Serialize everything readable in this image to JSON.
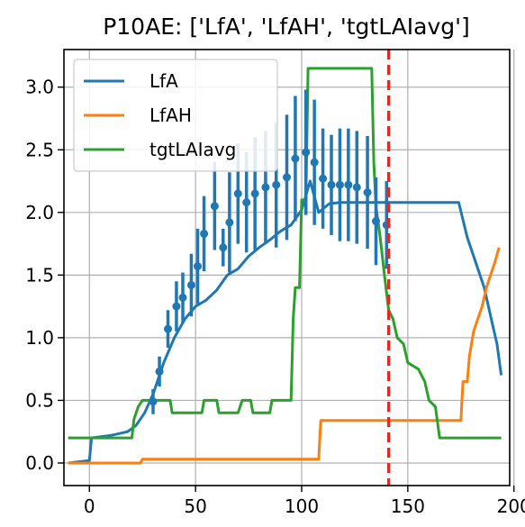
{
  "chart_data": {
    "type": "line",
    "title": "P10AE: ['LfA', 'LfAH', 'tgtLAIavg']",
    "xlabel": "",
    "ylabel": "",
    "xlim": [
      -12,
      198
    ],
    "ylim": [
      -0.18,
      3.3
    ],
    "xticks": [
      0,
      50,
      100,
      150,
      200
    ],
    "yticks": [
      0.0,
      0.5,
      1.0,
      1.5,
      2.0,
      2.5,
      3.0
    ],
    "xtick_labels": [
      "0",
      "50",
      "100",
      "150",
      "200"
    ],
    "ytick_labels": [
      "0.0",
      "0.5",
      "1.0",
      "1.5",
      "2.0",
      "2.5",
      "3.0"
    ],
    "grid": true,
    "legend_position": "top-left",
    "vline": {
      "x": 141,
      "color": "#e8261f",
      "style": "dashed"
    },
    "series": [
      {
        "name": "LfA",
        "color": "#1f77b4",
        "points": [
          [
            -10,
            0.0
          ],
          [
            0,
            0.02
          ],
          [
            1,
            0.2
          ],
          [
            10,
            0.22
          ],
          [
            18,
            0.25
          ],
          [
            22,
            0.3
          ],
          [
            26,
            0.4
          ],
          [
            30,
            0.55
          ],
          [
            35,
            0.8
          ],
          [
            40,
            1.0
          ],
          [
            45,
            1.15
          ],
          [
            50,
            1.25
          ],
          [
            55,
            1.3
          ],
          [
            60,
            1.38
          ],
          [
            65,
            1.5
          ],
          [
            70,
            1.55
          ],
          [
            75,
            1.65
          ],
          [
            80,
            1.72
          ],
          [
            85,
            1.78
          ],
          [
            90,
            1.85
          ],
          [
            95,
            1.9
          ],
          [
            100,
            2.02
          ],
          [
            104,
            2.25
          ],
          [
            108,
            2.0
          ],
          [
            113,
            2.07
          ],
          [
            118,
            2.08
          ],
          [
            130,
            2.08
          ],
          [
            140,
            2.08
          ],
          [
            160,
            2.08
          ],
          [
            174,
            2.08
          ],
          [
            178,
            1.8
          ],
          [
            182,
            1.6
          ],
          [
            186,
            1.4
          ],
          [
            190,
            1.1
          ],
          [
            192,
            0.95
          ],
          [
            194,
            0.7
          ]
        ]
      },
      {
        "name": "LfAH",
        "color": "#ff7f0e",
        "points": [
          [
            -10,
            0.0
          ],
          [
            24,
            0.0
          ],
          [
            25,
            0.03
          ],
          [
            60,
            0.03
          ],
          [
            108,
            0.03
          ],
          [
            109,
            0.34
          ],
          [
            140,
            0.34
          ],
          [
            175,
            0.34
          ],
          [
            176,
            0.65
          ],
          [
            178,
            0.65
          ],
          [
            179,
            0.85
          ],
          [
            181,
            1.05
          ],
          [
            183,
            1.15
          ],
          [
            185,
            1.25
          ],
          [
            187,
            1.4
          ],
          [
            189,
            1.5
          ],
          [
            191,
            1.6
          ],
          [
            193,
            1.72
          ]
        ]
      },
      {
        "name": "tgtLAIavg",
        "color": "#2ca02c",
        "points": [
          [
            -10,
            0.2
          ],
          [
            20,
            0.2
          ],
          [
            21,
            0.35
          ],
          [
            23,
            0.45
          ],
          [
            25,
            0.5
          ],
          [
            38,
            0.5
          ],
          [
            39,
            0.4
          ],
          [
            40,
            0.4
          ],
          [
            53,
            0.4
          ],
          [
            54,
            0.5
          ],
          [
            60,
            0.5
          ],
          [
            61,
            0.4
          ],
          [
            70,
            0.4
          ],
          [
            72,
            0.5
          ],
          [
            76,
            0.5
          ],
          [
            77,
            0.4
          ],
          [
            85,
            0.4
          ],
          [
            86,
            0.5
          ],
          [
            95,
            0.5
          ],
          [
            96,
            1.15
          ],
          [
            97,
            1.4
          ],
          [
            99,
            1.4
          ],
          [
            100,
            2.1
          ],
          [
            102,
            2.1
          ],
          [
            103,
            3.15
          ],
          [
            133,
            3.15
          ],
          [
            134,
            2.4
          ],
          [
            135,
            2.05
          ],
          [
            137,
            1.8
          ],
          [
            139,
            1.5
          ],
          [
            141,
            1.22
          ],
          [
            143,
            1.15
          ],
          [
            145,
            1.0
          ],
          [
            148,
            0.95
          ],
          [
            150,
            0.8
          ],
          [
            155,
            0.75
          ],
          [
            158,
            0.65
          ],
          [
            160,
            0.5
          ],
          [
            163,
            0.45
          ],
          [
            165,
            0.2
          ],
          [
            194,
            0.2
          ]
        ]
      }
    ],
    "observations": {
      "color": "#1f77b4",
      "x": [
        30,
        33,
        37,
        41,
        44,
        48,
        51,
        54,
        59,
        63,
        66,
        70,
        74,
        78,
        83,
        88,
        93,
        97,
        102,
        106,
        110,
        114,
        118,
        122,
        126,
        131,
        135,
        140
      ],
      "y": [
        0.49,
        0.73,
        1.07,
        1.25,
        1.32,
        1.42,
        1.57,
        1.83,
        2.05,
        1.72,
        1.92,
        2.15,
        2.08,
        2.15,
        2.2,
        2.22,
        2.28,
        2.43,
        2.48,
        2.4,
        2.27,
        2.22,
        2.22,
        2.22,
        2.2,
        2.16,
        1.93,
        1.9
      ],
      "err": [
        0.1,
        0.12,
        0.15,
        0.2,
        0.2,
        0.25,
        0.3,
        0.3,
        0.35,
        0.15,
        0.4,
        0.4,
        0.4,
        0.45,
        0.45,
        0.5,
        0.5,
        0.5,
        0.5,
        0.5,
        0.4,
        0.4,
        0.45,
        0.45,
        0.45,
        0.45,
        0.35,
        0.35
      ]
    }
  }
}
